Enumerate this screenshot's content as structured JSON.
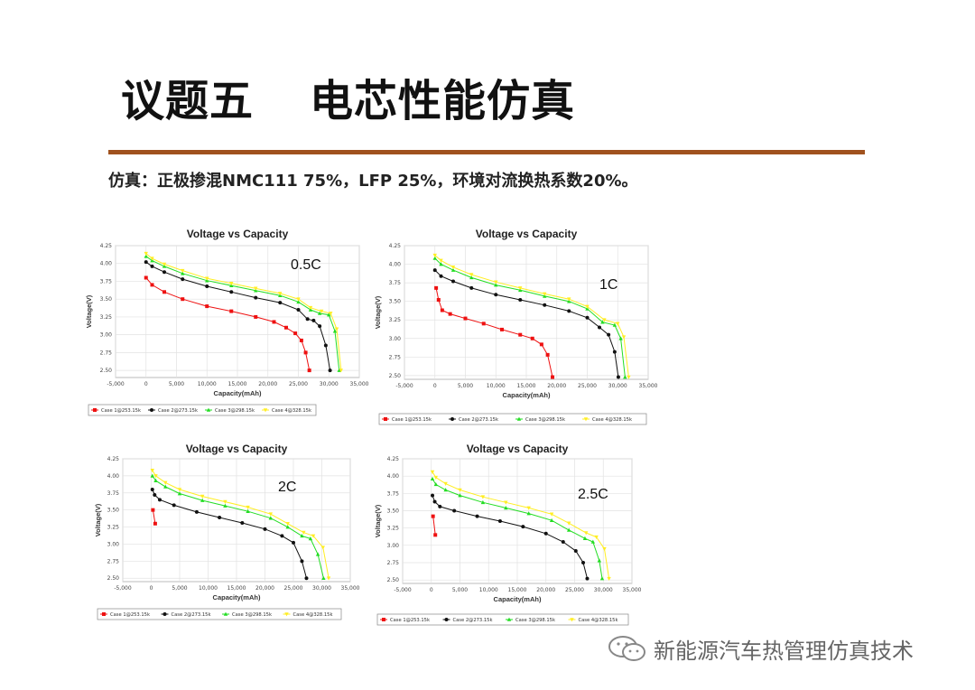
{
  "header": {
    "title_part1": "议题五",
    "title_part2": "电芯性能仿真",
    "subtitle": "仿真：正极掺混NMC111 75%，LFP 25%，环境对流换热系数20%。"
  },
  "footer": {
    "brand": "新能源汽车热管理仿真技术",
    "brand_icon": "wechat-icon"
  },
  "colors": {
    "rule": "#a0521e",
    "case1": "#ee1111",
    "case2": "#111111",
    "case3": "#22dd22",
    "case4": "#ffee22"
  },
  "legend": [
    "Case 1@253.15k",
    "Case 2@273.15k",
    "Case 3@298.15k",
    "Case 4@328.15k"
  ],
  "chart_data": [
    {
      "type": "line",
      "title": "Voltage vs Capacity",
      "annotation": "0.5C",
      "xlabel": "Capacity(mAh)",
      "ylabel": "Voltage(V)",
      "xlim": [
        -5000,
        35000
      ],
      "ylim": [
        2.4,
        4.25
      ],
      "xticks": [
        "-5,000",
        "0",
        "5,000",
        "10,000",
        "15,000",
        "20,000",
        "25,000",
        "30,000",
        "35,000"
      ],
      "yticks": [
        "2.50",
        "2.75",
        "3.00",
        "3.25",
        "3.50",
        "3.75",
        "4.00",
        "4.25"
      ],
      "grid": true,
      "legend": "bottom",
      "series": [
        {
          "name": "Case 1@253.15k",
          "x": [
            0,
            1000,
            3000,
            6000,
            10000,
            14000,
            18000,
            21000,
            23000,
            24500,
            25500,
            26200,
            26800
          ],
          "y": [
            3.8,
            3.7,
            3.6,
            3.5,
            3.4,
            3.33,
            3.25,
            3.18,
            3.1,
            3.02,
            2.92,
            2.75,
            2.5
          ]
        },
        {
          "name": "Case 2@273.15k",
          "x": [
            0,
            1000,
            3000,
            6000,
            10000,
            14000,
            18000,
            22000,
            25000,
            26500,
            27500,
            28500,
            29500,
            30200
          ],
          "y": [
            4.02,
            3.96,
            3.88,
            3.78,
            3.68,
            3.6,
            3.52,
            3.45,
            3.35,
            3.22,
            3.2,
            3.12,
            2.85,
            2.5
          ]
        },
        {
          "name": "Case 3@298.15k",
          "x": [
            0,
            1000,
            3000,
            6000,
            10000,
            14000,
            18000,
            22000,
            25000,
            27000,
            28500,
            30000,
            31000,
            31700
          ],
          "y": [
            4.1,
            4.04,
            3.96,
            3.86,
            3.76,
            3.69,
            3.62,
            3.55,
            3.46,
            3.35,
            3.3,
            3.28,
            3.05,
            2.5
          ]
        },
        {
          "name": "Case 4@328.15k",
          "x": [
            0,
            1000,
            3000,
            6000,
            10000,
            14000,
            18000,
            22000,
            25000,
            27000,
            28800,
            30300,
            31300,
            32000
          ],
          "y": [
            4.14,
            4.07,
            3.99,
            3.9,
            3.79,
            3.72,
            3.65,
            3.58,
            3.5,
            3.38,
            3.33,
            3.3,
            3.08,
            2.5
          ]
        }
      ]
    },
    {
      "type": "line",
      "title": "Voltage vs Capacity",
      "annotation": "1C",
      "xlabel": "Capacity(mAh)",
      "ylabel": "Voltage(V)",
      "xlim": [
        -5000,
        35000
      ],
      "ylim": [
        2.45,
        4.25
      ],
      "xticks": [
        "-5,000",
        "0",
        "5,000",
        "10,000",
        "15,000",
        "20,000",
        "25,000",
        "30,000",
        "35,000"
      ],
      "yticks": [
        "2.50",
        "2.75",
        "3.00",
        "3.25",
        "3.50",
        "3.75",
        "4.00",
        "4.25"
      ],
      "grid": true,
      "legend": "bottom",
      "series": [
        {
          "name": "Case 1@253.15k",
          "x": [
            200,
            600,
            1200,
            2500,
            5000,
            8000,
            11000,
            14000,
            16000,
            17500,
            18500,
            19300
          ],
          "y": [
            3.68,
            3.52,
            3.38,
            3.33,
            3.27,
            3.2,
            3.12,
            3.05,
            3.0,
            2.92,
            2.78,
            2.48
          ]
        },
        {
          "name": "Case 2@273.15k",
          "x": [
            0,
            1000,
            3000,
            6000,
            10000,
            14000,
            18000,
            22000,
            25000,
            27000,
            28500,
            29500,
            30100
          ],
          "y": [
            3.92,
            3.84,
            3.77,
            3.68,
            3.59,
            3.52,
            3.45,
            3.37,
            3.28,
            3.15,
            3.05,
            2.82,
            2.48
          ]
        },
        {
          "name": "Case 3@298.15k",
          "x": [
            0,
            1000,
            3000,
            6000,
            10000,
            14000,
            18000,
            22000,
            25000,
            27500,
            29500,
            30500,
            31200
          ],
          "y": [
            4.08,
            4.0,
            3.92,
            3.82,
            3.72,
            3.65,
            3.57,
            3.5,
            3.4,
            3.22,
            3.18,
            3.0,
            2.48
          ]
        },
        {
          "name": "Case 4@328.15k",
          "x": [
            0,
            1000,
            3000,
            6000,
            10000,
            14000,
            18000,
            22000,
            25000,
            27800,
            30000,
            31000,
            31800
          ],
          "y": [
            4.12,
            4.05,
            3.96,
            3.86,
            3.76,
            3.68,
            3.6,
            3.53,
            3.43,
            3.25,
            3.2,
            3.02,
            2.48
          ]
        }
      ]
    },
    {
      "type": "line",
      "title": "Voltage vs Capacity",
      "annotation": "2C",
      "xlabel": "Capacity(mAh)",
      "ylabel": "Voltage(V)",
      "xlim": [
        -5000,
        35000
      ],
      "ylim": [
        2.45,
        4.25
      ],
      "xticks": [
        "-5,000",
        "0",
        "5,000",
        "10,000",
        "15,000",
        "20,000",
        "25,000",
        "30,000",
        "35,000"
      ],
      "yticks": [
        "2.50",
        "2.75",
        "3.00",
        "3.25",
        "3.50",
        "3.75",
        "4.00",
        "4.25"
      ],
      "grid": true,
      "legend": "bottom",
      "series": [
        {
          "name": "Case 1@253.15k",
          "x": [
            300,
            700
          ],
          "y": [
            3.5,
            3.3
          ]
        },
        {
          "name": "Case 2@273.15k",
          "x": [
            200,
            600,
            1500,
            4000,
            8000,
            12000,
            16000,
            20000,
            23000,
            25000,
            26500,
            27300
          ],
          "y": [
            3.8,
            3.72,
            3.65,
            3.57,
            3.47,
            3.39,
            3.31,
            3.22,
            3.12,
            3.02,
            2.75,
            2.5
          ]
        },
        {
          "name": "Case 3@298.15k",
          "x": [
            200,
            800,
            2500,
            5000,
            9000,
            13000,
            17000,
            21000,
            24000,
            26500,
            28000,
            29300,
            30300
          ],
          "y": [
            4.0,
            3.93,
            3.84,
            3.74,
            3.64,
            3.56,
            3.48,
            3.38,
            3.25,
            3.12,
            3.08,
            2.85,
            2.5
          ]
        },
        {
          "name": "Case 4@328.15k",
          "x": [
            200,
            800,
            2500,
            5000,
            9000,
            13000,
            17000,
            21000,
            24000,
            26800,
            28500,
            30200,
            31200
          ],
          "y": [
            4.08,
            4.0,
            3.9,
            3.8,
            3.7,
            3.62,
            3.54,
            3.44,
            3.3,
            3.17,
            3.12,
            2.95,
            2.5
          ]
        }
      ]
    },
    {
      "type": "line",
      "title": "Voltage vs Capacity",
      "annotation": "2.5C",
      "xlabel": "Capacity(mAh)",
      "ylabel": "Voltage(V)",
      "xlim": [
        -5000,
        35000
      ],
      "ylim": [
        2.45,
        4.25
      ],
      "xticks": [
        "-5,000",
        "0",
        "5,000",
        "10,000",
        "15,000",
        "20,000",
        "25,000",
        "30,000",
        "35,000"
      ],
      "yticks": [
        "2.50",
        "2.75",
        "3.00",
        "3.25",
        "3.50",
        "3.75",
        "4.00",
        "4.25"
      ],
      "grid": true,
      "legend": "bottom",
      "series": [
        {
          "name": "Case 1@253.15k",
          "x": [
            300,
            700
          ],
          "y": [
            3.42,
            3.15
          ]
        },
        {
          "name": "Case 2@273.15k",
          "x": [
            200,
            600,
            1500,
            4000,
            8000,
            12000,
            16000,
            20000,
            23000,
            25200,
            26500,
            27200
          ],
          "y": [
            3.72,
            3.63,
            3.56,
            3.5,
            3.42,
            3.35,
            3.27,
            3.17,
            3.05,
            2.92,
            2.75,
            2.52
          ]
        },
        {
          "name": "Case 3@298.15k",
          "x": [
            200,
            800,
            2500,
            5000,
            9000,
            13000,
            17000,
            21000,
            24000,
            26800,
            28200,
            29300,
            29800
          ],
          "y": [
            3.96,
            3.88,
            3.8,
            3.72,
            3.62,
            3.54,
            3.46,
            3.36,
            3.22,
            3.1,
            3.05,
            2.78,
            2.52
          ]
        },
        {
          "name": "Case 4@328.15k",
          "x": [
            200,
            800,
            2500,
            5000,
            9000,
            13000,
            17000,
            21000,
            24000,
            27000,
            28800,
            30200,
            31000
          ],
          "y": [
            4.06,
            3.98,
            3.89,
            3.8,
            3.7,
            3.62,
            3.54,
            3.45,
            3.32,
            3.18,
            3.12,
            2.95,
            2.52
          ]
        }
      ]
    }
  ]
}
